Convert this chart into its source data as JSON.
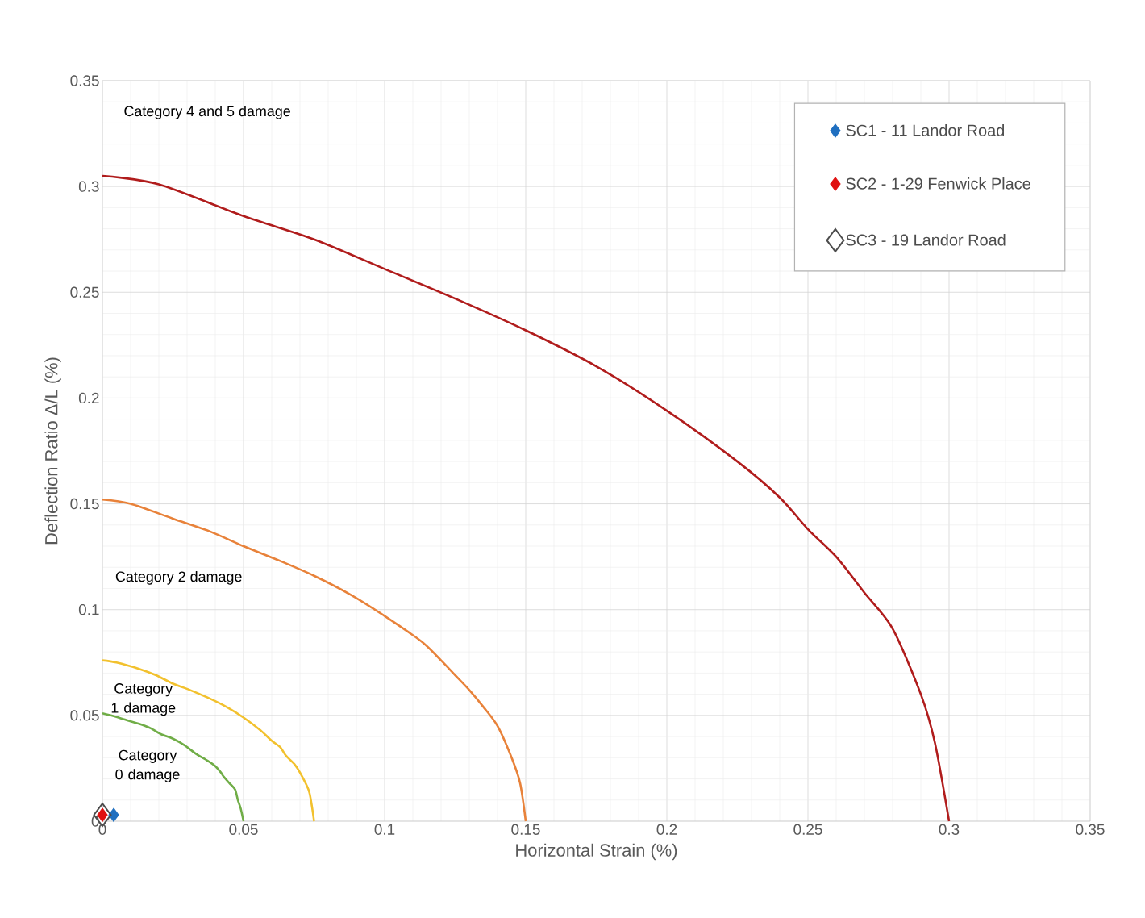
{
  "chart_data": {
    "type": "scatter",
    "xlabel": "Horizontal Strain (%)",
    "ylabel": "Deflection Ratio Δ/L (%)",
    "xlim": [
      0,
      0.35
    ],
    "ylim": [
      0,
      0.35
    ],
    "xticks": [
      0,
      0.05,
      0.1,
      0.15,
      0.2,
      0.25,
      0.3,
      0.35
    ],
    "yticks": [
      0,
      0.05,
      0.1,
      0.15,
      0.2,
      0.25,
      0.3,
      0.35
    ],
    "grid": true,
    "legend": "top right",
    "annotations": [
      "Category 4 and 5 damage",
      "Category 2 damage",
      "Category 1 damage",
      "Category 0 damage"
    ],
    "series": [
      {
        "type": "line",
        "color": "#b01c1c",
        "x": [
          0,
          0.02,
          0.05,
          0.075,
          0.1,
          0.125,
          0.15,
          0.175,
          0.2,
          0.225,
          0.24,
          0.25,
          0.26,
          0.27,
          0.28,
          0.29,
          0.295,
          0.3
        ],
        "values": [
          0.305,
          0.301,
          0.286,
          0.275,
          0.261,
          0.247,
          0.232,
          0.215,
          0.194,
          0.17,
          0.153,
          0.138,
          0.125,
          0.108,
          0.091,
          0.06,
          0.037,
          0
        ]
      },
      {
        "type": "line",
        "color": "#e8823a",
        "x": [
          0,
          0.01,
          0.025,
          0.038,
          0.05,
          0.063,
          0.075,
          0.088,
          0.1,
          0.113,
          0.12,
          0.125,
          0.13,
          0.135,
          0.14,
          0.145,
          0.148,
          0.15
        ],
        "values": [
          0.152,
          0.15,
          0.143,
          0.137,
          0.13,
          0.123,
          0.116,
          0.107,
          0.097,
          0.085,
          0.076,
          0.069,
          0.062,
          0.054,
          0.045,
          0.03,
          0.018,
          0
        ]
      },
      {
        "type": "line",
        "color": "#f2c12e",
        "x": [
          0,
          0.005,
          0.013,
          0.019,
          0.025,
          0.031,
          0.038,
          0.044,
          0.05,
          0.056,
          0.06,
          0.063,
          0.065,
          0.068,
          0.07,
          0.073,
          0.074,
          0.075
        ],
        "values": [
          0.076,
          0.075,
          0.072,
          0.069,
          0.065,
          0.062,
          0.058,
          0.054,
          0.049,
          0.043,
          0.038,
          0.035,
          0.031,
          0.027,
          0.023,
          0.015,
          0.009,
          0
        ]
      },
      {
        "type": "line",
        "color": "#70ad47",
        "x": [
          0,
          0.003,
          0.008,
          0.013,
          0.017,
          0.021,
          0.025,
          0.029,
          0.033,
          0.038,
          0.04,
          0.042,
          0.043,
          0.045,
          0.047,
          0.048,
          0.049,
          0.05
        ],
        "values": [
          0.051,
          0.05,
          0.048,
          0.046,
          0.044,
          0.041,
          0.039,
          0.036,
          0.032,
          0.028,
          0.026,
          0.023,
          0.021,
          0.018,
          0.015,
          0.01,
          0.006,
          0
        ]
      },
      {
        "name": "SC1 - 11 Landor Road",
        "marker": "diamond",
        "color": "#1f6fc0",
        "x": [
          0.004
        ],
        "values": [
          0.003
        ]
      },
      {
        "name": "SC2 - 1-29 Fenwick Place",
        "marker": "diamond",
        "color": "#e01010",
        "x": [
          0
        ],
        "values": [
          0.003
        ]
      },
      {
        "name": "SC3 - 19 Landor Road",
        "marker": "diamond",
        "color": "#4c4c4c",
        "x": [
          0
        ],
        "values": [
          0.003
        ]
      }
    ]
  }
}
